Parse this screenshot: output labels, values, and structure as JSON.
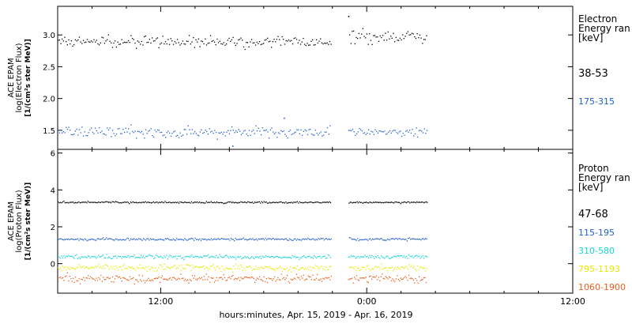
{
  "figure": {
    "xlabel": "hours:minutes, Apr. 15, 2019 - Apr. 16, 2019"
  },
  "chart_data": [
    {
      "type": "scatter",
      "ylabel_lines": [
        "ACE EPAM",
        "log(Electron Flux)",
        "[1/(cm²s ster MeV)]"
      ],
      "ylim": [
        1.2,
        3.45
      ],
      "yticks": [
        1.5,
        2.0,
        2.5,
        3.0
      ],
      "ytick_labels": [
        "1.5",
        "2.0",
        "2.5",
        "3.0"
      ],
      "xlim": [
        "2019-04-15 06:00",
        "2019-04-16 12:00"
      ],
      "xtick_labels": [
        "12:00",
        "0:00",
        "12:00"
      ],
      "legend": {
        "title_lines": [
          "Electron",
          "Energy ran",
          "[keV]"
        ]
      },
      "data_gap": [
        "2019-04-15 21:55",
        "2019-04-15 22:55"
      ],
      "series": [
        {
          "name": "38-53",
          "color": "#000000",
          "mean_before_gap": 2.9,
          "mean_after_gap": 2.97,
          "scatter": 0.08
        },
        {
          "name": "175-315",
          "color": "#1f5fd0",
          "mean_before_gap": 1.48,
          "mean_after_gap": 1.48,
          "scatter": 0.07
        }
      ],
      "outliers": [
        {
          "x": "2019-04-15 22:55",
          "y": 3.3,
          "series": "38-53"
        },
        {
          "x": "2019-04-15 19:10",
          "y": 1.7,
          "series": "175-315"
        },
        {
          "x": "2019-04-15 16:10",
          "y": 1.26,
          "series": "175-315"
        }
      ]
    },
    {
      "type": "scatter",
      "ylabel_lines": [
        "ACE EPAM",
        "log(Proton Flux)",
        "[1/(cm²s ster MeV)]"
      ],
      "ylim": [
        -1.6,
        6.2
      ],
      "yticks": [
        0,
        2,
        4,
        6
      ],
      "ytick_labels": [
        "0",
        "2",
        "4",
        "6"
      ],
      "xlim": [
        "2019-04-15 06:00",
        "2019-04-16 12:00"
      ],
      "xtick_labels": [
        "12:00",
        "0:00",
        "12:00"
      ],
      "legend": {
        "title_lines": [
          "Proton",
          "Energy ran",
          "[keV]"
        ]
      },
      "data_gap": [
        "2019-04-15 21:55",
        "2019-04-15 22:55"
      ],
      "series": [
        {
          "name": "47-68",
          "color": "#000000",
          "mean": 3.35,
          "scatter": 0.04
        },
        {
          "name": "115-195",
          "color": "#1f5fd0",
          "mean": 1.35,
          "scatter": 0.06
        },
        {
          "name": "310-580",
          "color": "#12d6d6",
          "mean": 0.4,
          "scatter": 0.1
        },
        {
          "name": "795-1193",
          "color": "#e8e800",
          "mean": -0.2,
          "scatter": 0.15
        },
        {
          "name": "1060-1900",
          "color": "#e8601c",
          "mean": -0.8,
          "scatter": 0.2
        }
      ]
    }
  ]
}
